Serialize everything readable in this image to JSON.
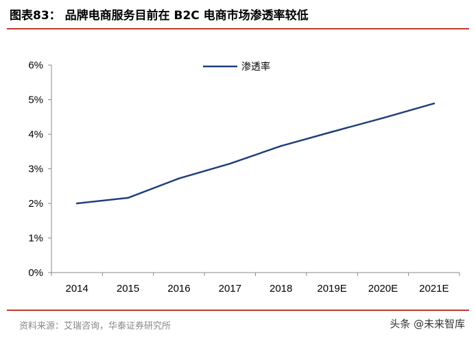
{
  "header": {
    "title": "图表83：  品牌电商服务目前在 B2C 电商市场渗透率较低",
    "accent_color": "#c0392b"
  },
  "footer": {
    "source": "资料来源：艾瑞咨询，华泰证券研究所",
    "watermark": "头条 @未来智库"
  },
  "chart_data": {
    "type": "line",
    "categories": [
      "2014",
      "2015",
      "2016",
      "2017",
      "2018",
      "2019E",
      "2020E",
      "2021E"
    ],
    "series": [
      {
        "name": "渗透率",
        "values": [
          2.0,
          2.16,
          2.72,
          3.15,
          3.66,
          4.07,
          4.47,
          4.89
        ],
        "color": "#1f3f7a"
      }
    ],
    "yticks": [
      "0%",
      "1%",
      "2%",
      "3%",
      "4%",
      "5%",
      "6%"
    ],
    "ylim": [
      0,
      6
    ],
    "grid": false,
    "legend_position": "top-center"
  }
}
